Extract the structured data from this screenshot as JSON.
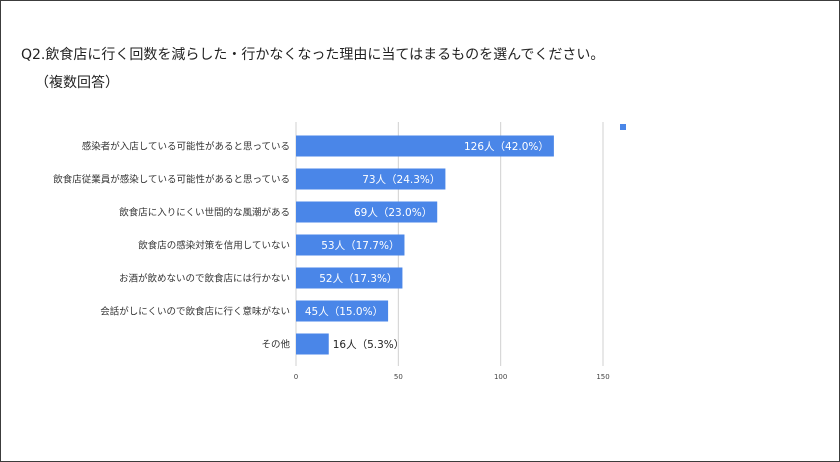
{
  "title": "Q2.飲食店に行く回数を減らした・行かなくなった理由に当てはまるものを選んでください。",
  "subtitle": "（複数回答）",
  "chart_data": {
    "type": "bar",
    "orientation": "horizontal",
    "categories": [
      "感染者が入店している可能性があると思っている",
      "飲食店従業員が感染している可能性があると思っている",
      "飲食店に入りにくい世間的な風潮がある",
      "飲食店の感染対策を信用していない",
      "お酒が飲めないので飲食店には行かない",
      "会話がしにくいので飲食店に行く意味がない",
      "その他"
    ],
    "values": [
      126,
      73,
      69,
      53,
      52,
      45,
      16
    ],
    "data_labels": [
      "126人（42.0%）",
      "73人（24.3%）",
      "69人（23.0%）",
      "53人（17.7%）",
      "52人（17.3%）",
      "45人（15.0%）",
      "16人（5.3%）"
    ],
    "xlim": [
      0,
      150
    ],
    "x_ticks": [
      "0",
      "50",
      "100",
      "150"
    ],
    "grid": true,
    "legend": "top-right",
    "bar_color": "#4a86e8",
    "grid_color": "#d0d0d0"
  }
}
